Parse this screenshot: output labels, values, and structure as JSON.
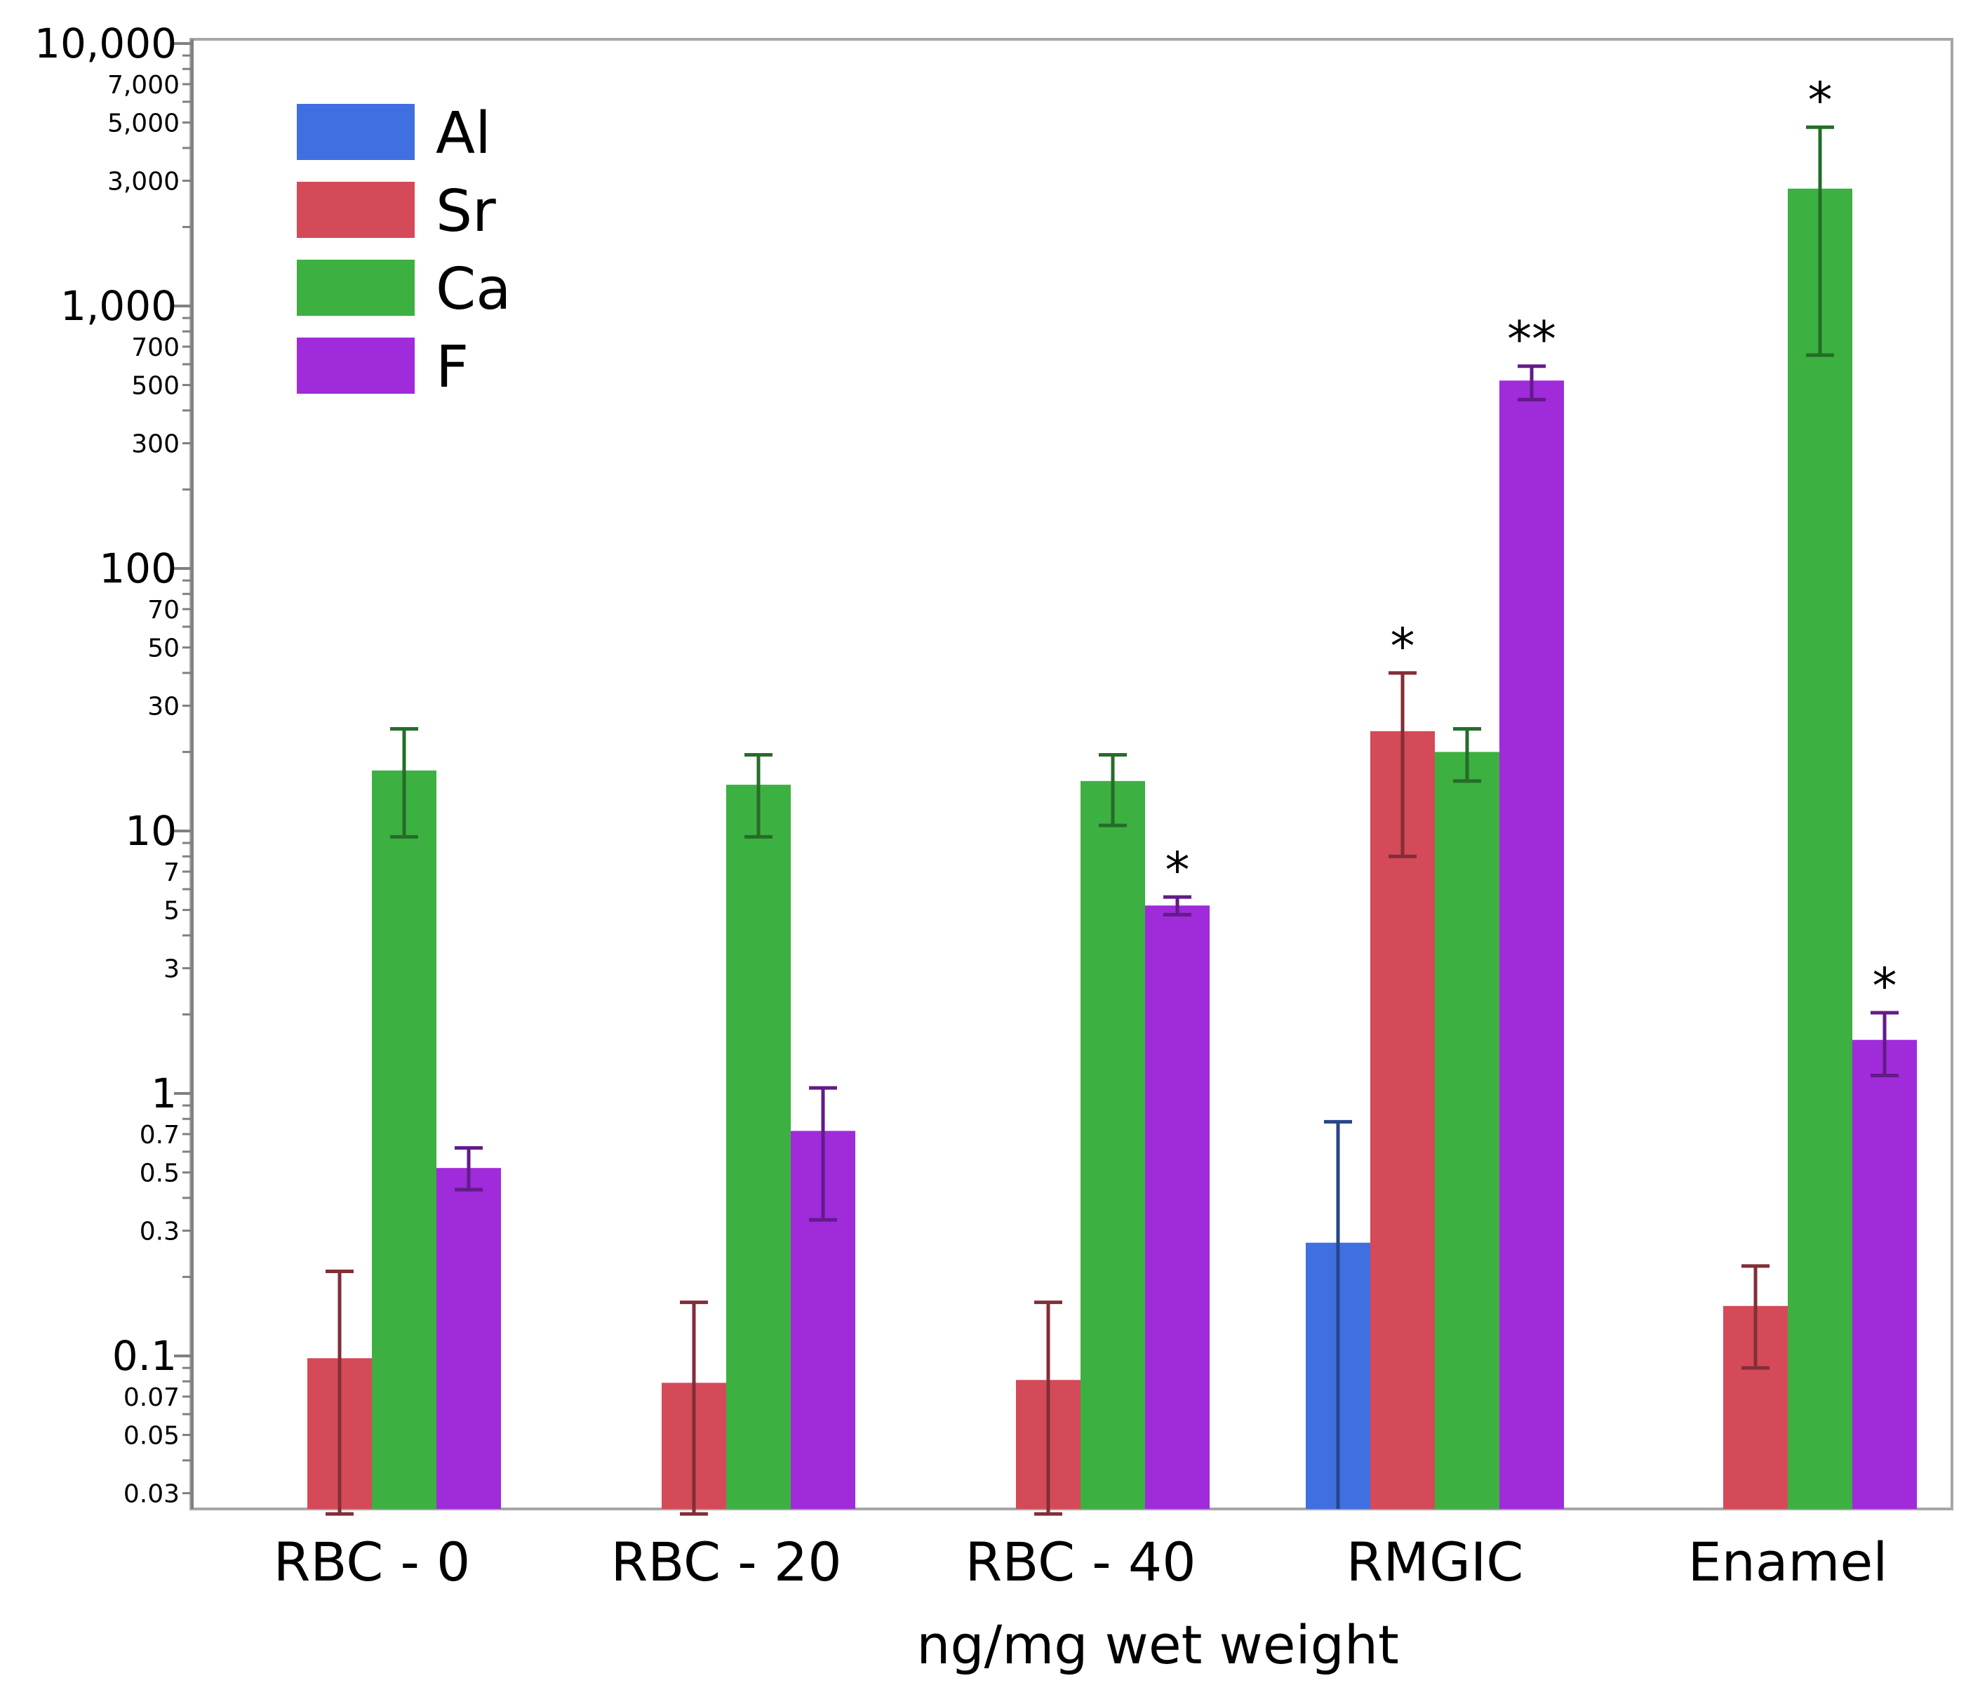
{
  "chart_data": {
    "type": "bar",
    "xlabel": "ng/mg wet weight",
    "ylabel": "",
    "yscale": "log",
    "ylim": [
      0.025,
      10000
    ],
    "grid": false,
    "legend_placement": "top-left",
    "y_ticks_major": [
      {
        "value": 10000,
        "label": "10,000"
      },
      {
        "value": 1000,
        "label": "1,000"
      },
      {
        "value": 100,
        "label": "100"
      },
      {
        "value": 10,
        "label": "10"
      },
      {
        "value": 1,
        "label": "1"
      },
      {
        "value": 0.1,
        "label": "0.1"
      }
    ],
    "y_ticks_minor": [
      {
        "value": 7000,
        "label": "7,000"
      },
      {
        "value": 5000,
        "label": "5,000"
      },
      {
        "value": 3000,
        "label": "3,000"
      },
      {
        "value": 700,
        "label": "700"
      },
      {
        "value": 500,
        "label": "500"
      },
      {
        "value": 300,
        "label": "300"
      },
      {
        "value": 70,
        "label": "70"
      },
      {
        "value": 50,
        "label": "50"
      },
      {
        "value": 30,
        "label": "30"
      },
      {
        "value": 7,
        "label": "7"
      },
      {
        "value": 5,
        "label": "5"
      },
      {
        "value": 3,
        "label": "3"
      },
      {
        "value": 0.7,
        "label": "0.7"
      },
      {
        "value": 0.5,
        "label": "0.5"
      },
      {
        "value": 0.3,
        "label": "0.3"
      },
      {
        "value": 0.07,
        "label": "0.07"
      },
      {
        "value": 0.05,
        "label": "0.05"
      },
      {
        "value": 0.03,
        "label": "0.03"
      }
    ],
    "categories": [
      "RBC - 0",
      "RBC - 20",
      "RBC - 40",
      "RMGIC",
      "Enamel"
    ],
    "series": [
      {
        "name": "Al",
        "color": "#3f6fe0",
        "values": [
          null,
          null,
          null,
          0.27,
          null
        ],
        "err_low": [
          null,
          null,
          null,
          null,
          null
        ],
        "err_high": [
          null,
          null,
          null,
          0.78,
          null
        ],
        "significance": [
          "",
          "",
          "",
          "",
          ""
        ]
      },
      {
        "name": "Sr",
        "color": "#d44a58",
        "values": [
          0.098,
          0.079,
          0.081,
          24,
          0.155
        ],
        "err_low": [
          0.025,
          0.025,
          0.025,
          8,
          0.09
        ],
        "err_high": [
          0.21,
          0.16,
          0.16,
          40,
          0.22
        ],
        "significance": [
          "",
          "",
          "",
          "*",
          ""
        ]
      },
      {
        "name": "Ca",
        "color": "#3db042",
        "values": [
          17,
          15,
          15.5,
          20,
          2800
        ],
        "err_low": [
          9.5,
          9.5,
          10.5,
          15.5,
          650
        ],
        "err_high": [
          24.5,
          19.5,
          19.5,
          24.5,
          4800
        ],
        "significance": [
          "",
          "",
          "",
          "",
          "*"
        ]
      },
      {
        "name": "F",
        "color": "#9f2bdb",
        "values": [
          0.52,
          0.72,
          5.2,
          520,
          1.6
        ],
        "err_low": [
          0.43,
          0.33,
          4.8,
          440,
          1.17
        ],
        "err_high": [
          0.62,
          1.05,
          5.6,
          590,
          2.03
        ],
        "significance": [
          "",
          "",
          "*",
          "**",
          "*"
        ]
      }
    ]
  }
}
